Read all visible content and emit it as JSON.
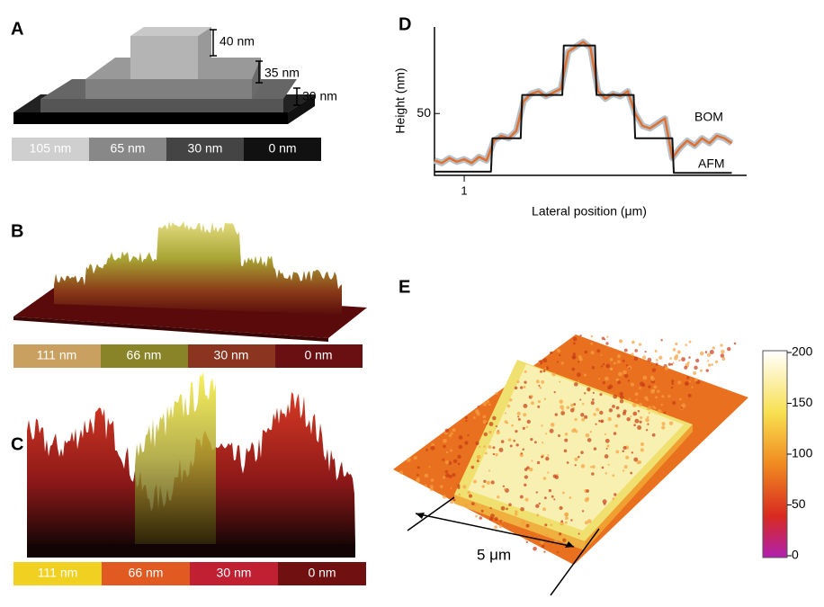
{
  "panel_a": {
    "label": "A",
    "heights": [
      "40 nm",
      "35 nm",
      "30 nm"
    ],
    "scale": [
      "105 nm",
      "65 nm",
      "30 nm",
      "0 nm"
    ]
  },
  "panel_b": {
    "label": "B",
    "scale": [
      "111 nm",
      "66 nm",
      "30 nm",
      "0 nm"
    ]
  },
  "panel_c": {
    "label": "C",
    "scale": [
      "111 nm",
      "66 nm",
      "30 nm",
      "0 nm"
    ]
  },
  "chart_data": {
    "type": "line",
    "panel_label": "D",
    "xlabel": "Lateral position (μm)",
    "ylabel": "Height (nm)",
    "xlim": [
      0,
      10.5
    ],
    "ylim": [
      0,
      120
    ],
    "xticks": [
      1
    ],
    "yticks": [
      50
    ],
    "series": [
      {
        "name": "BOM",
        "color": "#e07030",
        "x": [
          0,
          0.25,
          0.5,
          0.75,
          1,
          1.25,
          1.5,
          1.75,
          2,
          2.25,
          2.5,
          2.75,
          3,
          3.25,
          3.5,
          3.75,
          4,
          4.25,
          4.5,
          4.75,
          5,
          5.25,
          5.5,
          5.75,
          6,
          6.25,
          6.5,
          6.75,
          7,
          7.25,
          7.5,
          7.75,
          8,
          8.25,
          8.5,
          8.75,
          9,
          9.25,
          9.5,
          9.75,
          10
        ],
        "values": [
          12,
          10,
          14,
          11,
          13,
          10,
          15,
          12,
          28,
          32,
          30,
          36,
          60,
          66,
          68,
          64,
          67,
          70,
          100,
          104,
          108,
          103,
          68,
          62,
          66,
          64,
          68,
          50,
          40,
          38,
          42,
          46,
          14,
          22,
          28,
          24,
          30,
          26,
          32,
          30,
          26
        ]
      },
      {
        "name": "AFM",
        "color": "#111111",
        "x": [
          0,
          1.9,
          1.95,
          2.9,
          2.95,
          4.3,
          4.35,
          5.4,
          5.45,
          6.7,
          6.75,
          8.0,
          8.05,
          10.0
        ],
        "values": [
          3,
          3,
          30,
          30,
          65,
          65,
          105,
          105,
          65,
          65,
          30,
          30,
          2,
          2
        ]
      }
    ]
  },
  "panel_e": {
    "label": "E",
    "scale_bar": "5 μm",
    "colorbar_ticks": [
      200,
      150,
      100,
      50,
      0
    ]
  }
}
